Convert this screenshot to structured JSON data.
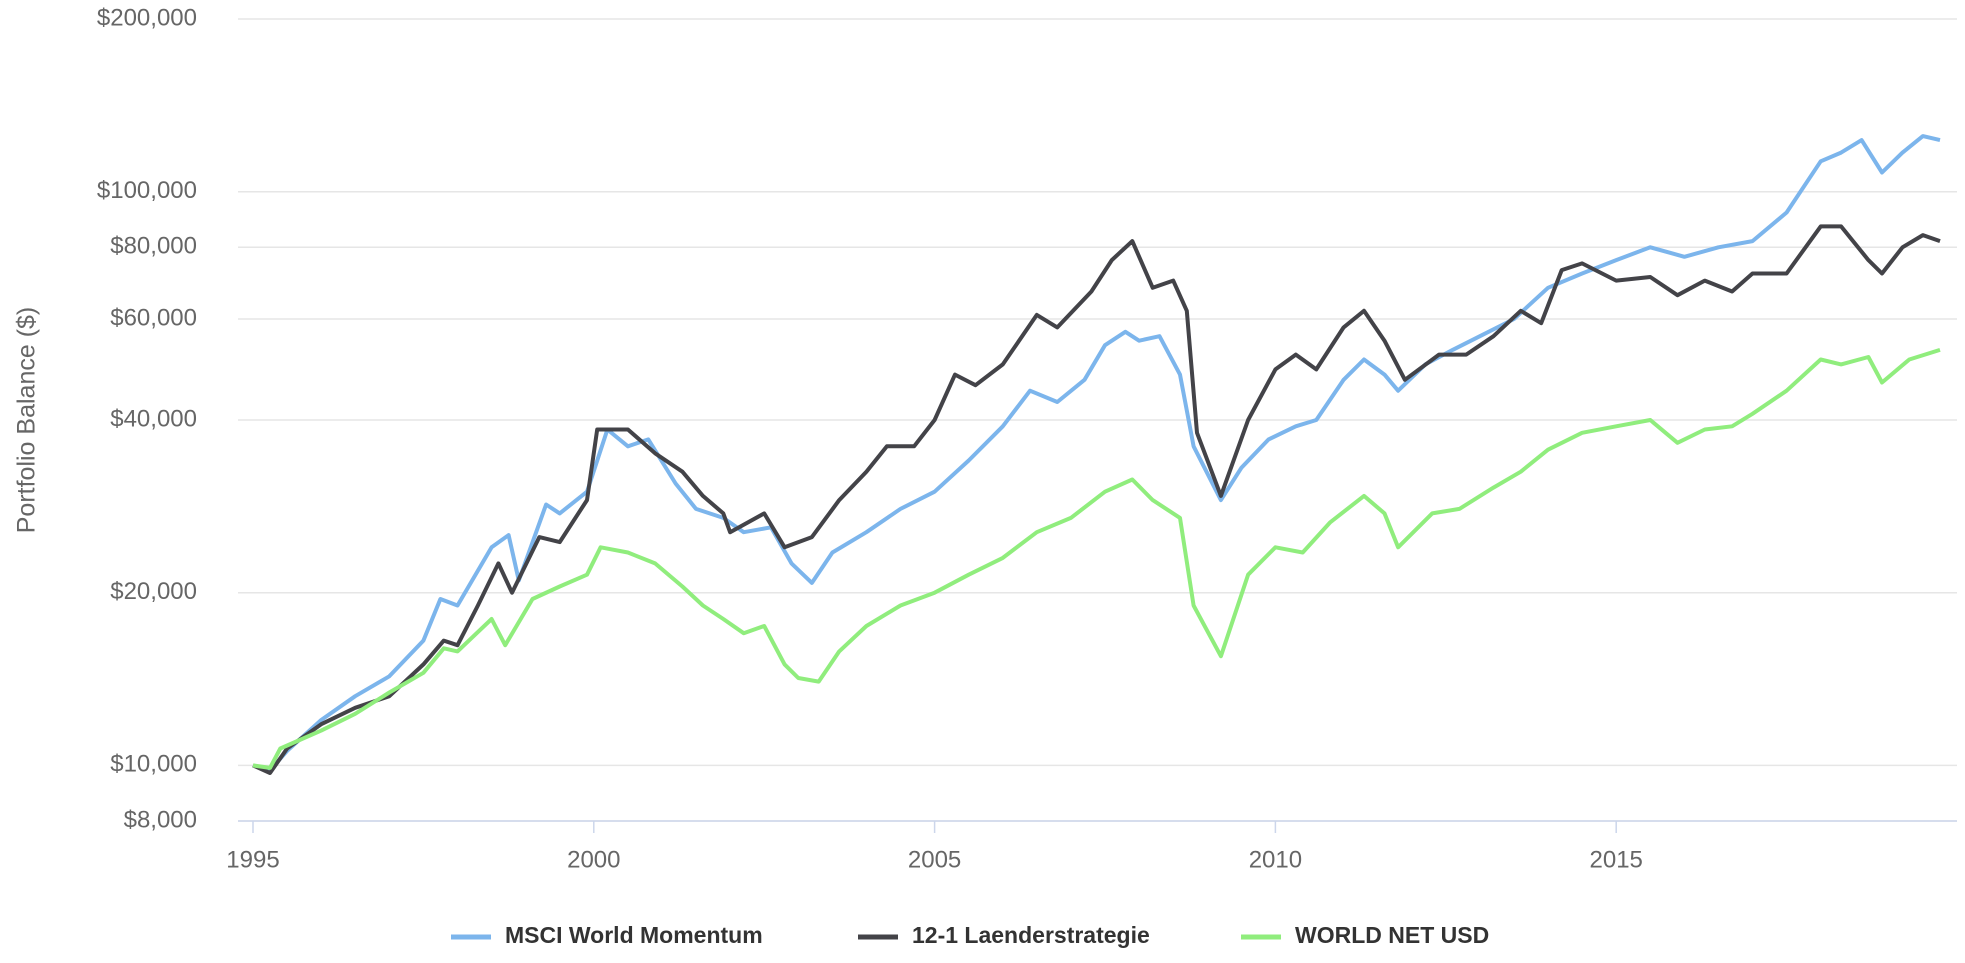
{
  "chart_data": {
    "type": "line",
    "y_label": "Portfolio Balance ($)",
    "log_y": true,
    "grid": true,
    "xlim": [
      1994.78,
      2020.0
    ],
    "xticks": [
      1995,
      2000,
      2005,
      2010,
      2015
    ],
    "ylim": [
      8000,
      200000
    ],
    "yticks": [
      {
        "value": 8000,
        "label": "$8,000"
      },
      {
        "value": 10000,
        "label": "$10,000"
      },
      {
        "value": 20000,
        "label": "$20,000"
      },
      {
        "value": 40000,
        "label": "$40,000"
      },
      {
        "value": 60000,
        "label": "$60,000"
      },
      {
        "value": 80000,
        "label": "$80,000"
      },
      {
        "value": 100000,
        "label": "$100,000"
      },
      {
        "value": 200000,
        "label": "$200,000"
      }
    ],
    "legend": "bottom",
    "series": [
      {
        "name": "MSCI World Momentum",
        "color": "#7cb5ec",
        "x": [
          1995.0,
          1995.25,
          1995.5,
          1996.0,
          1996.5,
          1997.0,
          1997.5,
          1997.75,
          1998.0,
          1998.5,
          1998.75,
          1998.9,
          1999.3,
          1999.5,
          1999.9,
          2000.2,
          2000.5,
          2000.8,
          2001.2,
          2001.5,
          2001.9,
          2002.2,
          2002.6,
          2002.9,
          2003.2,
          2003.5,
          2004.0,
          2004.5,
          2005.0,
          2005.5,
          2006.0,
          2006.4,
          2006.8,
          2007.2,
          2007.5,
          2007.8,
          2008.0,
          2008.3,
          2008.6,
          2008.8,
          2009.2,
          2009.5,
          2009.9,
          2010.3,
          2010.6,
          2011.0,
          2011.3,
          2011.6,
          2011.8,
          2012.2,
          2012.6,
          2013.0,
          2013.5,
          2014.0,
          2014.5,
          2015.0,
          2015.5,
          2016.0,
          2016.5,
          2017.0,
          2017.5,
          2018.0,
          2018.3,
          2018.6,
          2018.9,
          2019.2,
          2019.5,
          2019.75
        ],
        "values": [
          10000,
          9800,
          10600,
          12000,
          13200,
          14300,
          16500,
          19500,
          19000,
          24000,
          25200,
          21000,
          28500,
          27500,
          30000,
          38500,
          36000,
          37000,
          31000,
          28000,
          27000,
          25500,
          26000,
          22500,
          20800,
          23500,
          25500,
          28000,
          30000,
          34000,
          39000,
          45000,
          43000,
          47000,
          54000,
          57000,
          55000,
          56000,
          48000,
          36000,
          29000,
          33000,
          37000,
          39000,
          40000,
          47000,
          51000,
          48000,
          45000,
          50000,
          53000,
          56000,
          60000,
          68000,
          72000,
          76000,
          80000,
          77000,
          80000,
          82000,
          92000,
          113000,
          117000,
          123000,
          108000,
          117000,
          125000,
          123000
        ]
      },
      {
        "name": "12-1 Laenderstrategie",
        "color": "#434348",
        "x": [
          1995.0,
          1995.25,
          1995.5,
          1996.0,
          1996.5,
          1997.0,
          1997.5,
          1997.8,
          1998.0,
          1998.3,
          1998.6,
          1998.8,
          1999.2,
          1999.5,
          1999.9,
          2000.05,
          2000.5,
          2000.9,
          2001.3,
          2001.6,
          2001.9,
          2002.0,
          2002.5,
          2002.8,
          2003.2,
          2003.6,
          2004.0,
          2004.3,
          2004.7,
          2005.0,
          2005.3,
          2005.6,
          2006.0,
          2006.5,
          2006.8,
          2007.3,
          2007.6,
          2007.9,
          2008.2,
          2008.5,
          2008.7,
          2008.85,
          2009.2,
          2009.6,
          2010.0,
          2010.3,
          2010.6,
          2011.0,
          2011.3,
          2011.6,
          2011.9,
          2012.4,
          2012.8,
          2013.2,
          2013.6,
          2013.9,
          2014.2,
          2014.5,
          2015.0,
          2015.5,
          2015.9,
          2016.3,
          2016.7,
          2017.0,
          2017.5,
          2018.0,
          2018.3,
          2018.7,
          2018.9,
          2019.2,
          2019.5,
          2019.75
        ],
        "values": [
          10000,
          9700,
          10700,
          11800,
          12600,
          13200,
          15000,
          16500,
          16200,
          19000,
          22500,
          20000,
          25000,
          24500,
          29000,
          38500,
          38500,
          35000,
          32500,
          29500,
          27500,
          25500,
          27500,
          24000,
          25000,
          29000,
          32500,
          36000,
          36000,
          40000,
          48000,
          46000,
          50000,
          61000,
          58000,
          67000,
          76000,
          82000,
          68000,
          70000,
          62000,
          38000,
          29500,
          40000,
          49000,
          52000,
          49000,
          58000,
          62000,
          55000,
          47000,
          52000,
          52000,
          56000,
          62000,
          59000,
          73000,
          75000,
          70000,
          71000,
          66000,
          70000,
          67000,
          72000,
          72000,
          87000,
          87000,
          76000,
          72000,
          80000,
          84000,
          82000
        ]
      },
      {
        "name": "WORLD NET USD",
        "color": "#90ed7d",
        "x": [
          1995.0,
          1995.25,
          1995.4,
          1996.0,
          1996.5,
          1997.0,
          1997.5,
          1997.8,
          1998.0,
          1998.5,
          1998.7,
          1999.1,
          1999.5,
          1999.9,
          2000.1,
          2000.5,
          2000.9,
          2001.3,
          2001.6,
          2001.9,
          2002.2,
          2002.5,
          2002.8,
          2003.0,
          2003.3,
          2003.6,
          2004.0,
          2004.5,
          2005.0,
          2005.5,
          2006.0,
          2006.5,
          2007.0,
          2007.5,
          2007.9,
          2008.2,
          2008.6,
          2008.8,
          2009.2,
          2009.6,
          2010.0,
          2010.4,
          2010.8,
          2011.3,
          2011.6,
          2011.8,
          2012.3,
          2012.7,
          2013.2,
          2013.6,
          2014.0,
          2014.5,
          2015.0,
          2015.5,
          2015.9,
          2016.3,
          2016.7,
          2017.0,
          2017.5,
          2018.0,
          2018.3,
          2018.7,
          2018.9,
          2019.3,
          2019.75
        ],
        "values": [
          10000,
          9900,
          10700,
          11500,
          12300,
          13400,
          14500,
          16000,
          15800,
          18000,
          16200,
          19500,
          20500,
          21500,
          24000,
          23500,
          22500,
          20500,
          19000,
          18000,
          17000,
          17500,
          15000,
          14200,
          14000,
          15800,
          17500,
          19000,
          20000,
          21500,
          23000,
          25500,
          27000,
          30000,
          31500,
          29000,
          27000,
          19000,
          15500,
          21500,
          24000,
          23500,
          26500,
          29500,
          27500,
          24000,
          27500,
          28000,
          30500,
          32500,
          35500,
          38000,
          39000,
          40000,
          36500,
          38500,
          39000,
          41000,
          45000,
          51000,
          50000,
          51500,
          46500,
          51000,
          53000
        ]
      }
    ]
  }
}
